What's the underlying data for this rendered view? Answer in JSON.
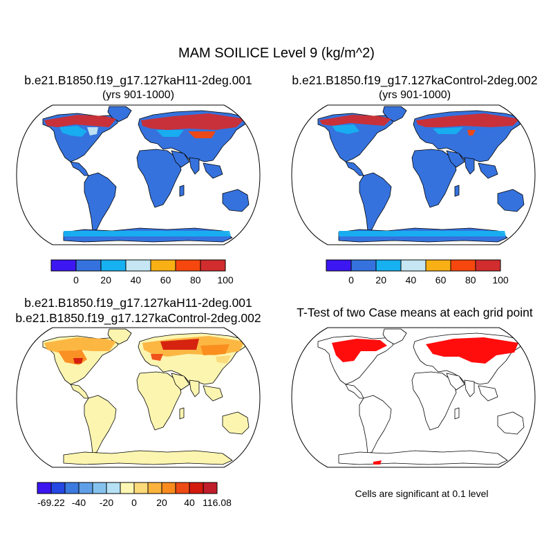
{
  "figure": {
    "title": "MAM SOILICE Level 9 (kg/m^2)"
  },
  "panels": [
    {
      "id": "case1",
      "title": "b.e21.B1850.f19_g17.127kaH11-2deg.001",
      "subtitle": "(yrs 901-1000)",
      "colorbar": {
        "colors": [
          "#3d17f2",
          "#3572dd",
          "#17b0f0",
          "#c5e6f2",
          "#f9b015",
          "#f6470e",
          "#d12d2f"
        ],
        "labels": [
          "0",
          "20",
          "40",
          "60",
          "80",
          "100"
        ]
      }
    },
    {
      "id": "case2",
      "title": "b.e21.B1850.f19_g17.127kaControl-2deg.002",
      "subtitle": "(yrs 901-1000)",
      "colorbar": {
        "colors": [
          "#3d17f2",
          "#3572dd",
          "#17b0f0",
          "#c5e6f2",
          "#f9b015",
          "#f6470e",
          "#d12d2f"
        ],
        "labels": [
          "0",
          "20",
          "40",
          "60",
          "80",
          "100"
        ]
      }
    },
    {
      "id": "diff",
      "title": "b.e21.B1850.f19_g17.127kaH11-2deg.001",
      "subtitle": "b.e21.B1850.f19_g17.127kaControl-2deg.002",
      "colorbar": {
        "colors": [
          "#3c16f1",
          "#2548e3",
          "#3b7be0",
          "#5f9fe8",
          "#85c3ee",
          "#b6e1f5",
          "#fdf7b3",
          "#fcd979",
          "#fcb33d",
          "#fa8b1e",
          "#ee4a13",
          "#d41a0e",
          "#c11e2c"
        ],
        "labels": [
          "-69.22",
          "-40",
          "-20",
          "0",
          "20",
          "40",
          "116.08"
        ]
      }
    },
    {
      "id": "ttest",
      "title": "T-Test of two Case means at each grid point",
      "note": "Cells are significant at 0.1 level"
    }
  ],
  "map_colors": {
    "ocean": "#ffffff",
    "land_case": "#3572dd",
    "land_diff": "#fcf5b0",
    "significant": "#ff0000",
    "coast": "#000000"
  }
}
